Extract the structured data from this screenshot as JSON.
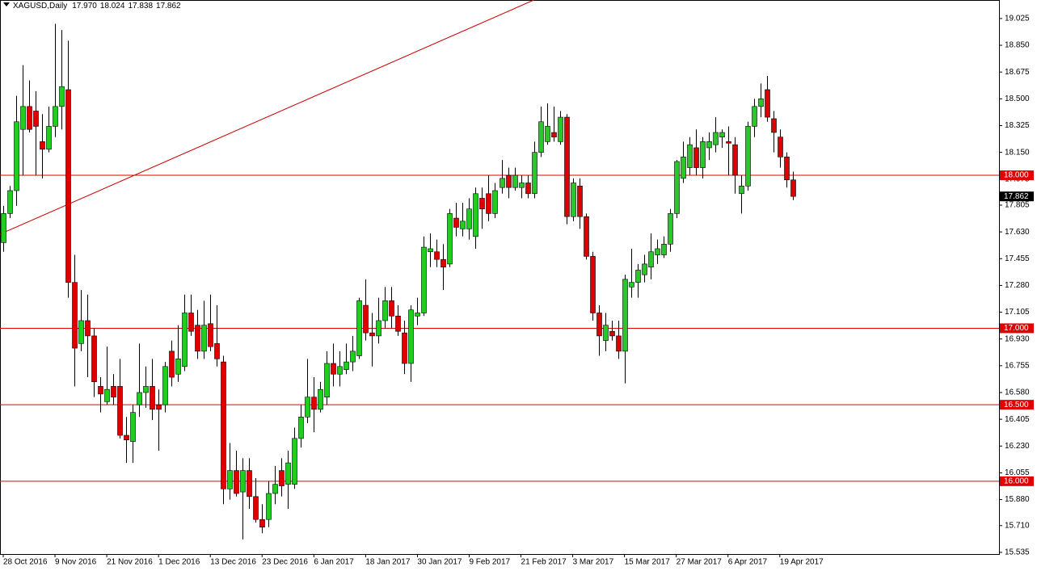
{
  "chart_data": {
    "type": "candlestick",
    "title": "XAGUSD,Daily",
    "title_values": [
      "17.970",
      "18.024",
      "17.838",
      "17.862"
    ],
    "bull_color": "#22cc22",
    "bear_color": "#dd0000",
    "outline_color": "#000000",
    "xlim": [
      -0.5,
      153.875
    ],
    "ylim": [
      15.524,
      19.146
    ],
    "yticks": [
      19.025,
      {
        "value": 18.85,
        "label": "18.850"
      },
      18.675,
      {
        "value": 18.5,
        "label": "18.500"
      },
      18.325,
      {
        "value": 18.15,
        "label": "18.150"
      },
      17.975,
      17.805,
      {
        "value": 17.63,
        "label": "17.630"
      },
      17.455,
      {
        "value": 17.28,
        "label": "17.280"
      },
      17.105,
      {
        "value": 16.93,
        "label": "16.930"
      },
      16.755,
      {
        "value": 16.58,
        "label": "16.580"
      },
      16.405,
      {
        "value": 16.23,
        "label": "16.230"
      },
      16.055,
      {
        "value": 15.88,
        "label": "15.880"
      },
      {
        "value": 15.71,
        "label": "15.710"
      },
      15.535
    ],
    "xticks": [
      {
        "value": 0,
        "label": "28 Oct 2016"
      },
      {
        "value": 8,
        "label": "9 Nov 2016"
      },
      {
        "value": 16,
        "label": "21 Nov 2016"
      },
      {
        "value": 24,
        "label": "1 Dec 2016"
      },
      {
        "value": 32,
        "label": "13 Dec 2016"
      },
      {
        "value": 40,
        "label": "23 Dec 2016"
      },
      {
        "value": 48,
        "label": "6 Jan 2017"
      },
      {
        "value": 56,
        "label": "18 Jan 2017"
      },
      {
        "value": 64,
        "label": "30 Jan 2017"
      },
      {
        "value": 72,
        "label": "9 Feb 2017"
      },
      {
        "value": 80,
        "label": "21 Feb 2017"
      },
      {
        "value": 88,
        "label": "3 Mar 2017"
      },
      {
        "value": 96,
        "label": "15 Mar 2017"
      },
      {
        "value": 104,
        "label": "27 Mar 2017"
      },
      {
        "value": 112,
        "label": "6 Apr 2017"
      },
      {
        "value": 120,
        "label": "19 Apr 2017"
      }
    ],
    "levels": [
      {
        "value": 18,
        "label": "18.000"
      },
      {
        "value": 17,
        "label": "17.000"
      },
      {
        "value": 16.5,
        "label": "16.500"
      },
      {
        "value": 16,
        "label": "16.000"
      }
    ],
    "level_color": "#e00000",
    "trendline": {
      "x": [
        -0.5,
        82
      ],
      "y": [
        17.615,
        19.146
      ],
      "color": "#cc0000"
    },
    "last_price": {
      "value": 17.862,
      "label": "17.862"
    },
    "candles": [
      [
        17.56,
        17.8,
        17.5,
        17.75
      ],
      [
        17.75,
        17.93,
        17.72,
        17.9
      ],
      [
        17.9,
        18.52,
        17.8,
        18.35
      ],
      [
        18.3,
        18.72,
        18.0,
        18.45
      ],
      [
        18.45,
        18.62,
        18.28,
        18.3
      ],
      [
        18.42,
        18.55,
        18.0,
        18.32
      ],
      [
        18.22,
        18.4,
        17.98,
        18.17
      ],
      [
        18.17,
        18.45,
        18.15,
        18.32
      ],
      [
        18.32,
        18.99,
        18.25,
        18.45
      ],
      [
        18.45,
        18.95,
        18.3,
        18.58
      ],
      [
        18.56,
        18.88,
        17.2,
        17.3
      ],
      [
        17.3,
        17.48,
        16.62,
        16.87
      ],
      [
        16.9,
        17.25,
        16.85,
        17.05
      ],
      [
        17.05,
        17.22,
        16.68,
        16.95
      ],
      [
        16.95,
        17.0,
        16.55,
        16.65
      ],
      [
        16.62,
        16.68,
        16.45,
        16.57
      ],
      [
        16.52,
        16.88,
        16.5,
        16.6
      ],
      [
        16.62,
        16.7,
        16.5,
        16.55
      ],
      [
        16.62,
        16.8,
        16.28,
        16.3
      ],
      [
        16.3,
        16.42,
        16.12,
        16.27
      ],
      [
        16.26,
        16.5,
        16.12,
        16.45
      ],
      [
        16.5,
        16.9,
        16.42,
        16.58
      ],
      [
        16.58,
        16.75,
        16.48,
        16.62
      ],
      [
        16.62,
        16.8,
        16.4,
        16.47
      ],
      [
        16.5,
        16.6,
        16.2,
        16.47
      ],
      [
        16.5,
        16.78,
        16.45,
        16.75
      ],
      [
        16.85,
        16.92,
        16.62,
        16.68
      ],
      [
        16.7,
        17.02,
        16.65,
        16.8
      ],
      [
        16.75,
        17.22,
        16.72,
        17.1
      ],
      [
        17.1,
        17.22,
        16.95,
        16.98
      ],
      [
        17.02,
        17.12,
        16.8,
        16.85
      ],
      [
        16.85,
        17.18,
        16.8,
        17.02
      ],
      [
        17.03,
        17.22,
        16.85,
        16.88
      ],
      [
        16.9,
        17.15,
        16.75,
        16.8
      ],
      [
        16.78,
        16.82,
        15.85,
        15.95
      ],
      [
        15.95,
        16.25,
        15.88,
        16.07
      ],
      [
        16.07,
        16.2,
        15.9,
        15.92
      ],
      [
        15.93,
        16.15,
        15.62,
        16.07
      ],
      [
        16.07,
        16.15,
        15.82,
        15.9
      ],
      [
        15.9,
        16.02,
        15.73,
        15.75
      ],
      [
        15.75,
        15.85,
        15.66,
        15.7
      ],
      [
        15.75,
        16.0,
        15.7,
        15.92
      ],
      [
        15.92,
        16.1,
        15.85,
        15.98
      ],
      [
        16.07,
        16.15,
        15.9,
        15.97
      ],
      [
        15.98,
        16.2,
        15.82,
        16.12
      ],
      [
        15.98,
        16.35,
        15.95,
        16.28
      ],
      [
        16.28,
        16.5,
        16.22,
        16.42
      ],
      [
        16.42,
        16.8,
        16.38,
        16.55
      ],
      [
        16.55,
        16.68,
        16.32,
        16.47
      ],
      [
        16.47,
        16.65,
        16.45,
        16.6
      ],
      [
        16.55,
        16.85,
        16.5,
        16.77
      ],
      [
        16.77,
        16.9,
        16.62,
        16.7
      ],
      [
        16.7,
        16.85,
        16.62,
        16.75
      ],
      [
        16.73,
        16.9,
        16.7,
        16.78
      ],
      [
        16.78,
        16.95,
        16.72,
        16.85
      ],
      [
        16.82,
        17.2,
        16.8,
        17.18
      ],
      [
        17.15,
        17.32,
        16.92,
        16.97
      ],
      [
        16.97,
        17.1,
        16.75,
        16.95
      ],
      [
        16.95,
        17.2,
        16.9,
        17.05
      ],
      [
        17.05,
        17.27,
        17.0,
        17.18
      ],
      [
        17.18,
        17.27,
        17.0,
        17.08
      ],
      [
        17.08,
        17.15,
        16.95,
        16.98
      ],
      [
        16.97,
        17.05,
        16.7,
        16.77
      ],
      [
        16.77,
        17.15,
        16.65,
        17.12
      ],
      [
        17.08,
        17.2,
        17.02,
        17.1
      ],
      [
        17.1,
        17.6,
        17.08,
        17.53
      ],
      [
        17.5,
        17.62,
        17.4,
        17.52
      ],
      [
        17.5,
        17.58,
        17.4,
        17.45
      ],
      [
        17.45,
        17.55,
        17.25,
        17.4
      ],
      [
        17.42,
        17.78,
        17.4,
        17.75
      ],
      [
        17.72,
        17.82,
        17.6,
        17.66
      ],
      [
        17.65,
        17.82,
        17.6,
        17.7
      ],
      [
        17.65,
        17.85,
        17.58,
        17.78
      ],
      [
        17.6,
        17.92,
        17.52,
        17.88
      ],
      [
        17.85,
        17.92,
        17.65,
        17.78
      ],
      [
        17.88,
        18.0,
        17.7,
        17.75
      ],
      [
        17.75,
        17.95,
        17.72,
        17.9
      ],
      [
        17.92,
        18.1,
        17.88,
        17.98
      ],
      [
        18.0,
        18.05,
        17.85,
        17.92
      ],
      [
        17.92,
        18.05,
        17.9,
        18.0
      ],
      [
        17.92,
        18.0,
        17.85,
        17.95
      ],
      [
        17.95,
        18.0,
        17.85,
        17.88
      ],
      [
        17.88,
        18.22,
        17.85,
        18.15
      ],
      [
        18.15,
        18.45,
        18.12,
        18.35
      ],
      [
        18.22,
        18.47,
        18.2,
        18.32
      ],
      [
        18.28,
        18.45,
        18.22,
        18.25
      ],
      [
        18.22,
        18.42,
        18.2,
        18.38
      ],
      [
        18.38,
        18.4,
        17.68,
        17.73
      ],
      [
        17.73,
        17.98,
        17.7,
        17.95
      ],
      [
        17.93,
        17.98,
        17.65,
        17.73
      ],
      [
        17.73,
        17.75,
        17.45,
        17.47
      ],
      [
        17.47,
        17.5,
        17.05,
        17.1
      ],
      [
        17.1,
        17.15,
        16.82,
        16.95
      ],
      [
        16.92,
        17.1,
        16.85,
        17.02
      ],
      [
        16.98,
        17.05,
        16.92,
        16.95
      ],
      [
        16.95,
        17.05,
        16.8,
        16.85
      ],
      [
        16.85,
        17.35,
        16.64,
        17.32
      ],
      [
        17.27,
        17.52,
        17.2,
        17.3
      ],
      [
        17.3,
        17.42,
        17.2,
        17.38
      ],
      [
        17.35,
        17.48,
        17.3,
        17.42
      ],
      [
        17.4,
        17.62,
        17.32,
        17.5
      ],
      [
        17.48,
        17.58,
        17.42,
        17.52
      ],
      [
        17.48,
        17.6,
        17.46,
        17.55
      ],
      [
        17.55,
        17.78,
        17.5,
        17.75
      ],
      [
        17.75,
        18.1,
        17.72,
        18.09
      ],
      [
        17.98,
        18.22,
        17.95,
        18.12
      ],
      [
        18.05,
        18.25,
        18.0,
        18.2
      ],
      [
        18.18,
        18.3,
        18.0,
        18.05
      ],
      [
        18.05,
        18.25,
        17.98,
        18.22
      ],
      [
        18.18,
        18.28,
        18.1,
        18.22
      ],
      [
        18.2,
        18.38,
        18.15,
        18.28
      ],
      [
        18.25,
        18.3,
        18.18,
        18.28
      ],
      [
        18.22,
        18.32,
        18.0,
        18.21
      ],
      [
        18.2,
        18.25,
        17.88,
        18.0
      ],
      [
        17.88,
        18.0,
        17.75,
        17.93
      ],
      [
        17.93,
        18.35,
        17.9,
        18.32
      ],
      [
        18.32,
        18.5,
        18.25,
        18.45
      ],
      [
        18.45,
        18.6,
        18.38,
        18.5
      ],
      [
        18.56,
        18.65,
        18.35,
        18.38
      ],
      [
        18.37,
        18.42,
        18.15,
        18.28
      ],
      [
        18.25,
        18.3,
        18.05,
        18.12
      ],
      [
        18.12,
        18.15,
        17.92,
        17.97
      ],
      [
        17.97,
        18.024,
        17.838,
        17.862
      ]
    ]
  }
}
